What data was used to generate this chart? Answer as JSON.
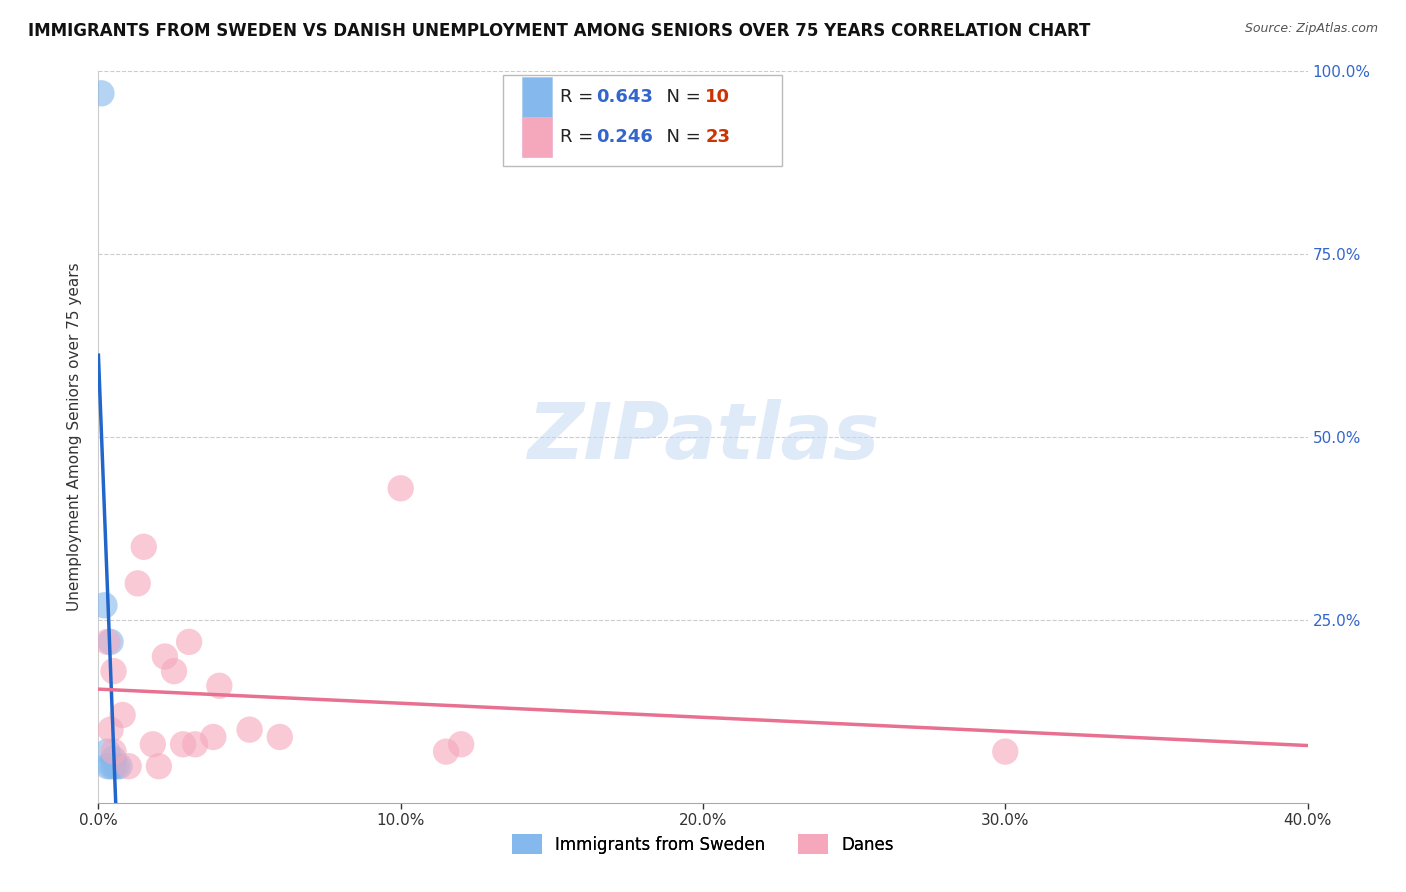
{
  "title": "IMMIGRANTS FROM SWEDEN VS DANISH UNEMPLOYMENT AMONG SENIORS OVER 75 YEARS CORRELATION CHART",
  "source": "Source: ZipAtlas.com",
  "ylabel": "Unemployment Among Seniors over 75 years",
  "xlim": [
    0.0,
    0.4
  ],
  "ylim": [
    0.0,
    1.0
  ],
  "xticks": [
    0.0,
    0.1,
    0.2,
    0.3,
    0.4
  ],
  "yticks": [
    0.0,
    0.25,
    0.5,
    0.75,
    1.0
  ],
  "xticklabels": [
    "0.0%",
    "10.0%",
    "20.0%",
    "30.0%",
    "40.0%"
  ],
  "yticklabels": [
    "",
    "25.0%",
    "50.0%",
    "75.0%",
    "100.0%"
  ],
  "legend_label_blue": "Immigrants from Sweden",
  "legend_label_pink": "Danes",
  "R_blue": "0.643",
  "N_blue": "10",
  "R_pink": "0.246",
  "N_pink": "23",
  "blue_scatter_color": "#85b8ec",
  "pink_scatter_color": "#f5a8bc",
  "blue_line_color": "#2266cc",
  "pink_line_color": "#e87090",
  "grid_color": "#cccccc",
  "background_color": "#ffffff",
  "title_fontsize": 12,
  "axis_label_fontsize": 11,
  "tick_fontsize": 11,
  "marker_size": 200,
  "blue_scatter_x": [
    0.001,
    0.002,
    0.003,
    0.003,
    0.004,
    0.004,
    0.005,
    0.005,
    0.006,
    0.007
  ],
  "blue_scatter_y": [
    0.97,
    0.27,
    0.07,
    0.05,
    0.22,
    0.05,
    0.06,
    0.05,
    0.05,
    0.05
  ],
  "pink_scatter_x": [
    0.003,
    0.004,
    0.005,
    0.005,
    0.008,
    0.01,
    0.013,
    0.015,
    0.018,
    0.02,
    0.022,
    0.025,
    0.028,
    0.03,
    0.032,
    0.038,
    0.04,
    0.05,
    0.06,
    0.1,
    0.115,
    0.12,
    0.3
  ],
  "pink_scatter_y": [
    0.22,
    0.1,
    0.07,
    0.18,
    0.12,
    0.05,
    0.3,
    0.35,
    0.08,
    0.05,
    0.2,
    0.18,
    0.08,
    0.22,
    0.08,
    0.09,
    0.16,
    0.1,
    0.09,
    0.43,
    0.07,
    0.08,
    0.07
  ],
  "watermark_text": "ZIPatlas",
  "watermark_color": "#c5daf5",
  "legend_box_color": "#ffffff",
  "legend_R_color": "#3366cc",
  "legend_N_color": "#cc3300"
}
